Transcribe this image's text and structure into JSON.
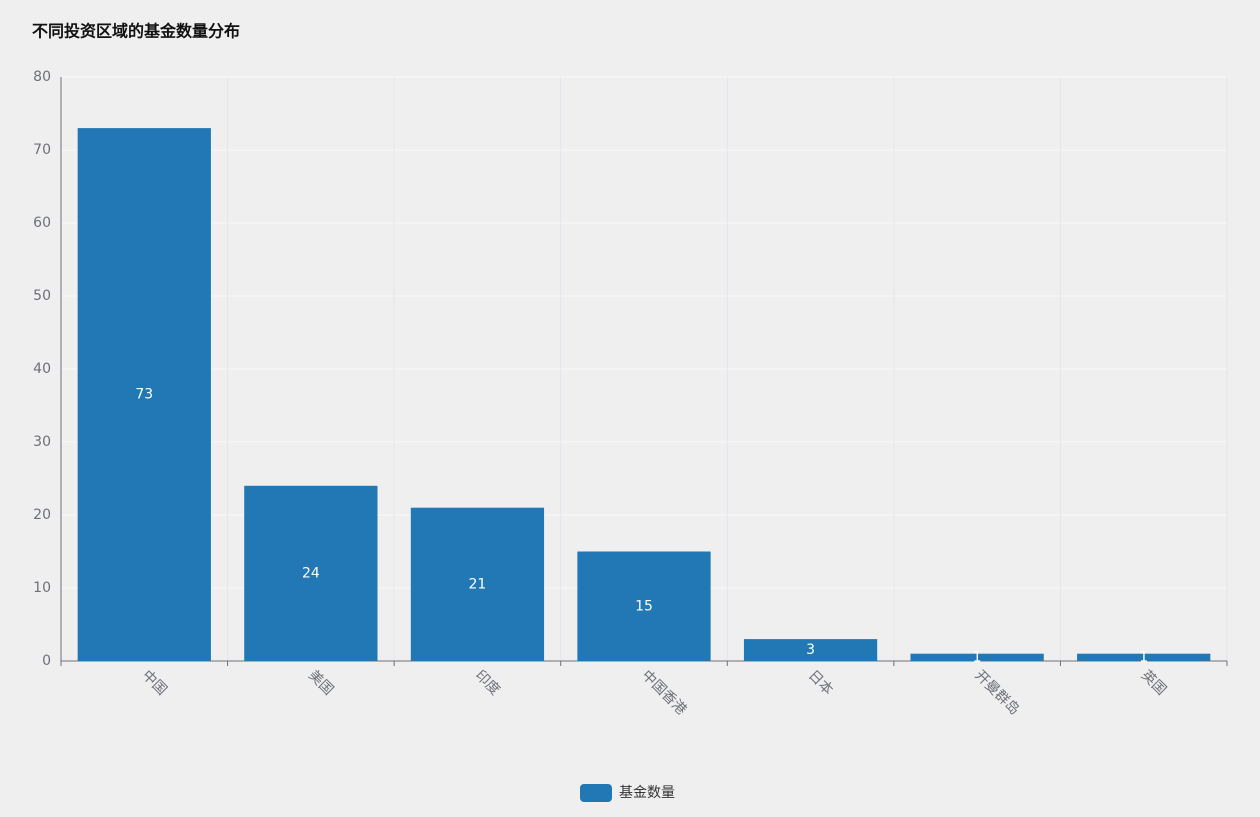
{
  "chart_data": {
    "type": "bar",
    "title": "不同投资区域的基金数量分布",
    "categories": [
      "中国",
      "美国",
      "印度",
      "中国香港",
      "日本",
      "开曼群岛",
      "英国"
    ],
    "series": [
      {
        "name": "基金数量",
        "color": "#2178b4",
        "values": [
          73,
          24,
          21,
          15,
          3,
          1,
          1
        ]
      }
    ],
    "ylim": [
      0,
      80
    ],
    "yticks": [
      0,
      10,
      20,
      30,
      40,
      50,
      60,
      70,
      80
    ],
    "grid": true,
    "legend": "bottom"
  }
}
